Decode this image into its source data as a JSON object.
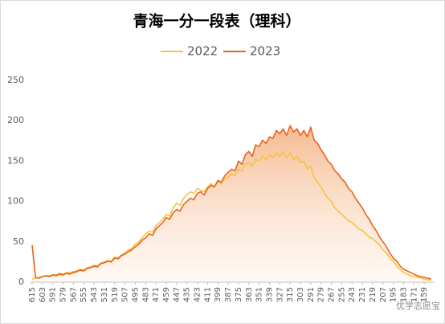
{
  "chart_data": {
    "type": "line",
    "title": "青海一分一段表（理科）",
    "watermark": "优学志愿宝",
    "legend": "top",
    "x": [
      615,
      611,
      607,
      603,
      599,
      595,
      591,
      587,
      583,
      579,
      575,
      571,
      567,
      563,
      559,
      555,
      551,
      547,
      543,
      539,
      535,
      531,
      527,
      523,
      519,
      515,
      511,
      507,
      503,
      499,
      495,
      491,
      487,
      483,
      479,
      475,
      471,
      467,
      463,
      459,
      455,
      451,
      447,
      443,
      439,
      435,
      431,
      427,
      423,
      419,
      415,
      411,
      407,
      403,
      399,
      395,
      391,
      387,
      383,
      379,
      375,
      371,
      367,
      363,
      359,
      355,
      351,
      347,
      343,
      339,
      335,
      331,
      327,
      323,
      319,
      315,
      311,
      307,
      303,
      299,
      295,
      291,
      287,
      283,
      279,
      275,
      271,
      267,
      263,
      259,
      255,
      251,
      247,
      243,
      239,
      235,
      231,
      227,
      223,
      219,
      215,
      211,
      207,
      203,
      199,
      195,
      191,
      187,
      183,
      179,
      175,
      171,
      167,
      163,
      159,
      155,
      151
    ],
    "series": [
      {
        "name": "2022",
        "color": "#f5c242",
        "values": [
          4,
          5,
          6,
          7,
          8,
          8,
          9,
          9,
          11,
          10,
          12,
          12,
          13,
          14,
          16,
          15,
          18,
          19,
          21,
          20,
          24,
          25,
          27,
          26,
          31,
          30,
          34,
          36,
          40,
          42,
          47,
          50,
          55,
          60,
          63,
          62,
          70,
          74,
          78,
          84,
          82,
          92,
          98,
          95,
          104,
          108,
          112,
          110,
          116,
          114,
          112,
          118,
          122,
          118,
          124,
          122,
          128,
          130,
          134,
          132,
          140,
          138,
          146,
          148,
          144,
          152,
          150,
          156,
          152,
          158,
          154,
          160,
          156,
          162,
          154,
          160,
          152,
          156,
          148,
          150,
          140,
          144,
          130,
          124,
          118,
          110,
          104,
          100,
          92,
          88,
          84,
          80,
          76,
          74,
          70,
          66,
          64,
          60,
          56,
          54,
          50,
          46,
          40,
          36,
          30,
          26,
          20,
          16,
          12,
          10,
          8,
          7,
          6,
          5,
          4,
          3,
          3
        ]
      },
      {
        "name": "2023",
        "color": "#e8641b",
        "values": [
          46,
          6,
          5,
          7,
          8,
          7,
          9,
          8,
          10,
          9,
          11,
          10,
          12,
          13,
          15,
          14,
          17,
          18,
          20,
          19,
          23,
          24,
          26,
          25,
          30,
          29,
          33,
          35,
          38,
          40,
          44,
          47,
          52,
          55,
          60,
          58,
          66,
          70,
          74,
          80,
          78,
          86,
          90,
          88,
          96,
          100,
          104,
          102,
          110,
          112,
          108,
          116,
          120,
          118,
          126,
          124,
          132,
          136,
          140,
          138,
          150,
          146,
          158,
          162,
          156,
          170,
          168,
          176,
          172,
          180,
          178,
          188,
          184,
          190,
          182,
          194,
          186,
          190,
          182,
          188,
          180,
          192,
          176,
          172,
          164,
          158,
          150,
          146,
          138,
          134,
          128,
          124,
          116,
          112,
          104,
          98,
          92,
          84,
          78,
          70,
          64,
          56,
          50,
          44,
          36,
          30,
          26,
          20,
          16,
          14,
          12,
          10,
          8,
          7,
          6,
          5,
          4
        ]
      }
    ],
    "xlim": [
      615,
      147
    ],
    "ylim": [
      0,
      250
    ],
    "xticks": [
      615,
      603,
      591,
      579,
      567,
      555,
      543,
      531,
      519,
      507,
      495,
      483,
      471,
      459,
      447,
      435,
      423,
      411,
      399,
      387,
      375,
      363,
      351,
      339,
      327,
      315,
      303,
      291,
      279,
      267,
      255,
      243,
      231,
      219,
      207,
      195,
      183,
      171,
      159
    ],
    "yticks": [
      0,
      50,
      100,
      150,
      200,
      250
    ]
  }
}
